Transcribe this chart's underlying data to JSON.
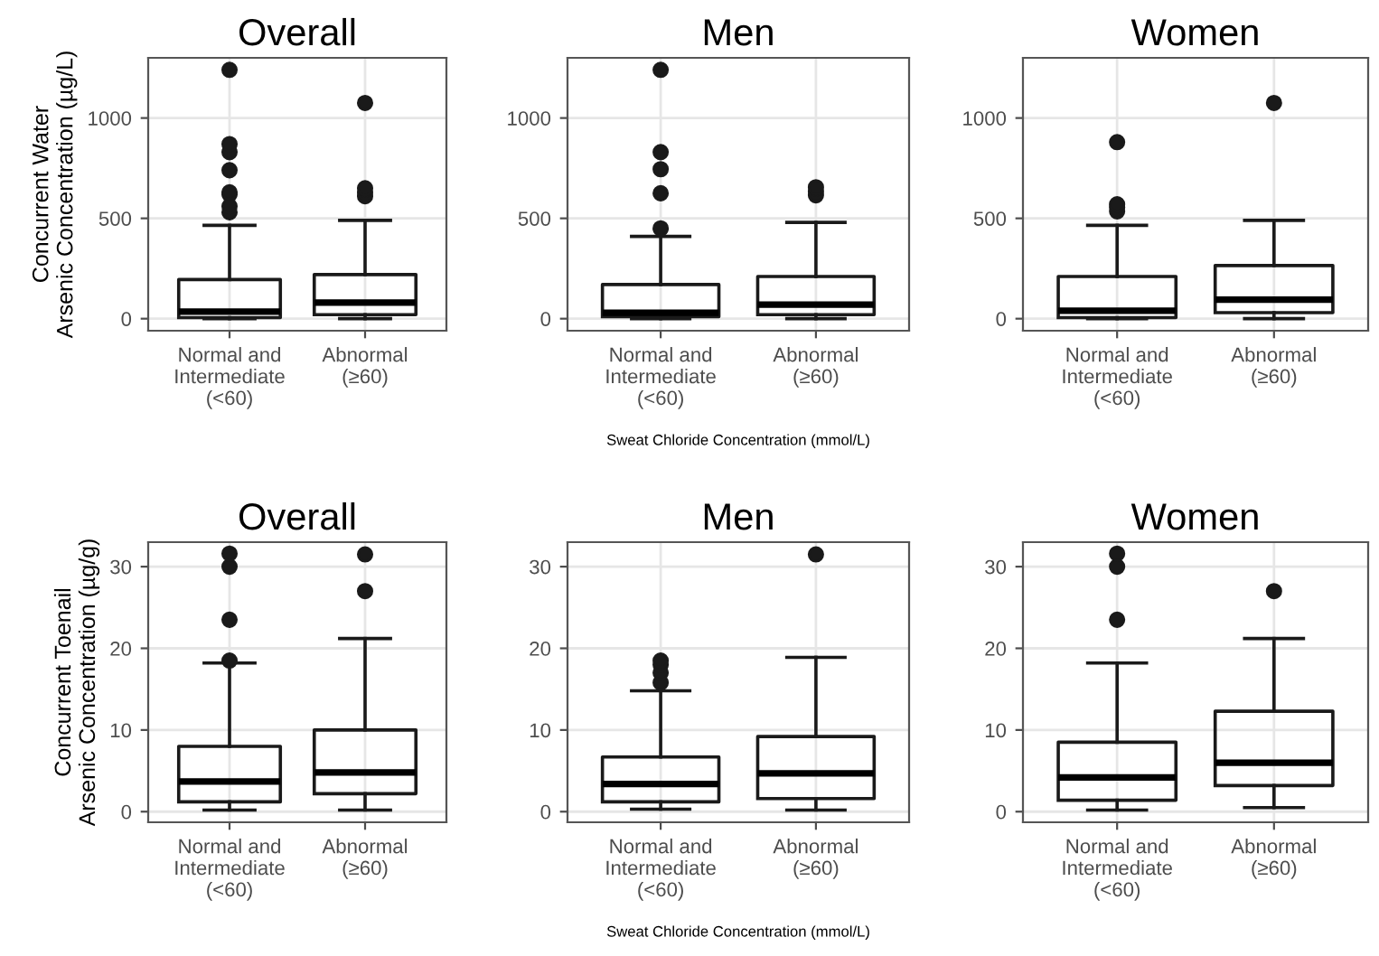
{
  "chart_data": [
    {
      "type": "box",
      "title": "Overall",
      "ylabel": "Concurrent Water\nArsenic Concentration (µg/L)",
      "categories": [
        "Normal and\nIntermediate\n(<60)",
        "Abnormal\n(≥60)"
      ],
      "ylim": [
        -60,
        1300
      ],
      "yticks": [
        0,
        500,
        1000
      ],
      "grid": true,
      "boxes": [
        {
          "low": 0,
          "q1": 5,
          "median": 35,
          "q3": 195,
          "high": 465,
          "outliers": [
            530,
            560,
            620,
            630,
            740,
            830,
            870,
            1240
          ]
        },
        {
          "low": 0,
          "q1": 20,
          "median": 80,
          "q3": 220,
          "high": 490,
          "outliers": [
            610,
            630,
            650,
            1075
          ]
        }
      ]
    },
    {
      "type": "box",
      "title": "Men",
      "xlabel": "Sweat Chloride Concentration (mmol/L)",
      "categories": [
        "Normal and\nIntermediate\n(<60)",
        "Abnormal\n(≥60)"
      ],
      "ylim": [
        -60,
        1300
      ],
      "yticks": [
        0,
        500,
        1000
      ],
      "grid": true,
      "boxes": [
        {
          "low": 0,
          "q1": 10,
          "median": 30,
          "q3": 170,
          "high": 410,
          "outliers": [
            450,
            625,
            745,
            830,
            1240
          ]
        },
        {
          "low": 0,
          "q1": 20,
          "median": 70,
          "q3": 210,
          "high": 480,
          "outliers": [
            615,
            635,
            655
          ]
        }
      ]
    },
    {
      "type": "box",
      "title": "Women",
      "categories": [
        "Normal and\nIntermediate\n(<60)",
        "Abnormal\n(≥60)"
      ],
      "ylim": [
        -60,
        1300
      ],
      "yticks": [
        0,
        500,
        1000
      ],
      "grid": true,
      "boxes": [
        {
          "low": 0,
          "q1": 5,
          "median": 40,
          "q3": 210,
          "high": 465,
          "outliers": [
            535,
            555,
            570,
            880
          ]
        },
        {
          "low": 0,
          "q1": 30,
          "median": 95,
          "q3": 265,
          "high": 490,
          "outliers": [
            1075
          ]
        }
      ]
    },
    {
      "type": "box",
      "title": "Overall",
      "ylabel": "Concurrent Toenail\nArsenic Concentration (µg/g)",
      "categories": [
        "Normal and\nIntermediate\n(<60)",
        "Abnormal\n(≥60)"
      ],
      "ylim": [
        -1.3,
        33
      ],
      "yticks": [
        0,
        10,
        20,
        30
      ],
      "grid": true,
      "boxes": [
        {
          "low": 0.2,
          "q1": 1.2,
          "median": 3.7,
          "q3": 8,
          "high": 18.2,
          "outliers": [
            18.5,
            23.5,
            30,
            31.6
          ]
        },
        {
          "low": 0.2,
          "q1": 2.2,
          "median": 4.8,
          "q3": 10,
          "high": 21.2,
          "outliers": [
            27,
            31.5
          ]
        }
      ]
    },
    {
      "type": "box",
      "title": "Men",
      "xlabel": "Sweat Chloride Concentration (mmol/L)",
      "categories": [
        "Normal and\nIntermediate\n(<60)",
        "Abnormal\n(≥60)"
      ],
      "ylim": [
        -1.3,
        33
      ],
      "yticks": [
        0,
        10,
        20,
        30
      ],
      "grid": true,
      "boxes": [
        {
          "low": 0.3,
          "q1": 1.2,
          "median": 3.4,
          "q3": 6.7,
          "high": 14.8,
          "outliers": [
            15.8,
            17,
            18,
            18.5
          ]
        },
        {
          "low": 0.2,
          "q1": 1.6,
          "median": 4.7,
          "q3": 9.2,
          "high": 18.9,
          "outliers": [
            31.5
          ]
        }
      ]
    },
    {
      "type": "box",
      "title": "Women",
      "categories": [
        "Normal and\nIntermediate\n(<60)",
        "Abnormal\n(≥60)"
      ],
      "ylim": [
        -1.3,
        33
      ],
      "yticks": [
        0,
        10,
        20,
        30
      ],
      "grid": true,
      "boxes": [
        {
          "low": 0.2,
          "q1": 1.4,
          "median": 4.2,
          "q3": 8.5,
          "high": 18.2,
          "outliers": [
            23.5,
            30,
            31.6
          ]
        },
        {
          "low": 0.5,
          "q1": 3.2,
          "median": 6,
          "q3": 12.3,
          "high": 21.2,
          "outliers": [
            27
          ]
        }
      ]
    }
  ]
}
